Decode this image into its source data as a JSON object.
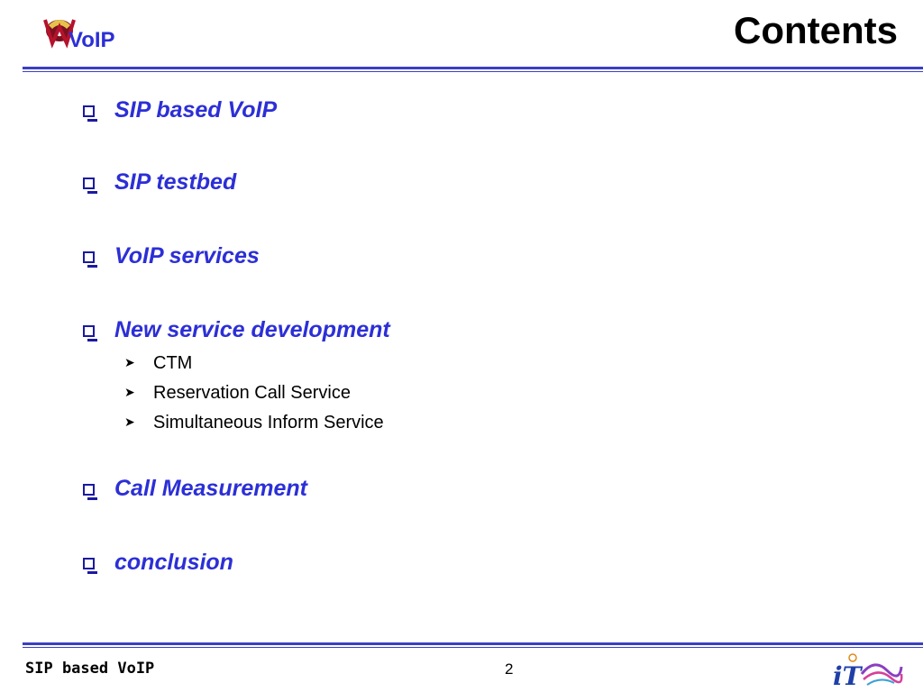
{
  "header": {
    "logo_text": "VoIP",
    "title": "Contents"
  },
  "bullets": [
    {
      "label": "SIP based VoIP"
    },
    {
      "label": "SIP testbed"
    },
    {
      "label": "VoIP services"
    },
    {
      "label": "New service development",
      "sub": [
        "CTM",
        "Reservation Call Service",
        "Simultaneous Inform Service"
      ]
    },
    {
      "label": "Call Measurement"
    },
    {
      "label": "conclusion"
    }
  ],
  "footer": {
    "title": "SIP based VoIP",
    "page_number": "2",
    "logo_text": "iT"
  },
  "colors": {
    "accent": "#2c2fd6",
    "rule": "#3a3fc4",
    "logo_red": "#b5122b"
  }
}
